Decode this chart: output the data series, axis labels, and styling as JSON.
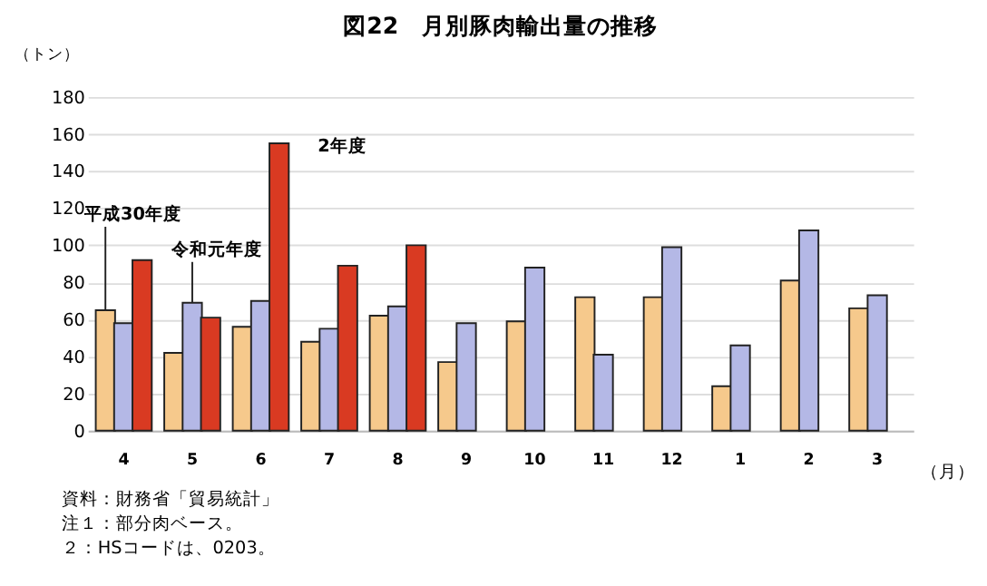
{
  "chart_data": {
    "type": "bar",
    "title": "図22　月別豚肉輸出量の推移",
    "ylabel": "（トン）",
    "xlabel": "（月）",
    "categories": [
      "4",
      "5",
      "6",
      "7",
      "8",
      "9",
      "10",
      "11",
      "12",
      "1",
      "2",
      "3"
    ],
    "series": [
      {
        "name": "平成30年度",
        "color": "#f6c98c",
        "values": [
          65,
          42,
          56,
          48,
          62,
          37,
          59,
          72,
          72,
          24,
          81,
          66
        ]
      },
      {
        "name": "令和元年度",
        "color": "#b4b8e6",
        "values": [
          58,
          69,
          70,
          55,
          67,
          58,
          88,
          41,
          99,
          46,
          108,
          73
        ]
      },
      {
        "name": "2年度",
        "color": "#d93a22",
        "values": [
          92,
          61,
          155,
          89,
          100,
          null,
          null,
          null,
          null,
          null,
          null,
          null
        ]
      }
    ],
    "ylim": [
      0,
      180
    ],
    "yticks": [
      0,
      20,
      40,
      60,
      80,
      100,
      120,
      140,
      160,
      180
    ],
    "grid": "y",
    "legend": false,
    "annotations": [
      "資料：財務省「貿易統計」",
      "注１：部分肉ベース。",
      "　２：HSコードは、0203。"
    ]
  }
}
